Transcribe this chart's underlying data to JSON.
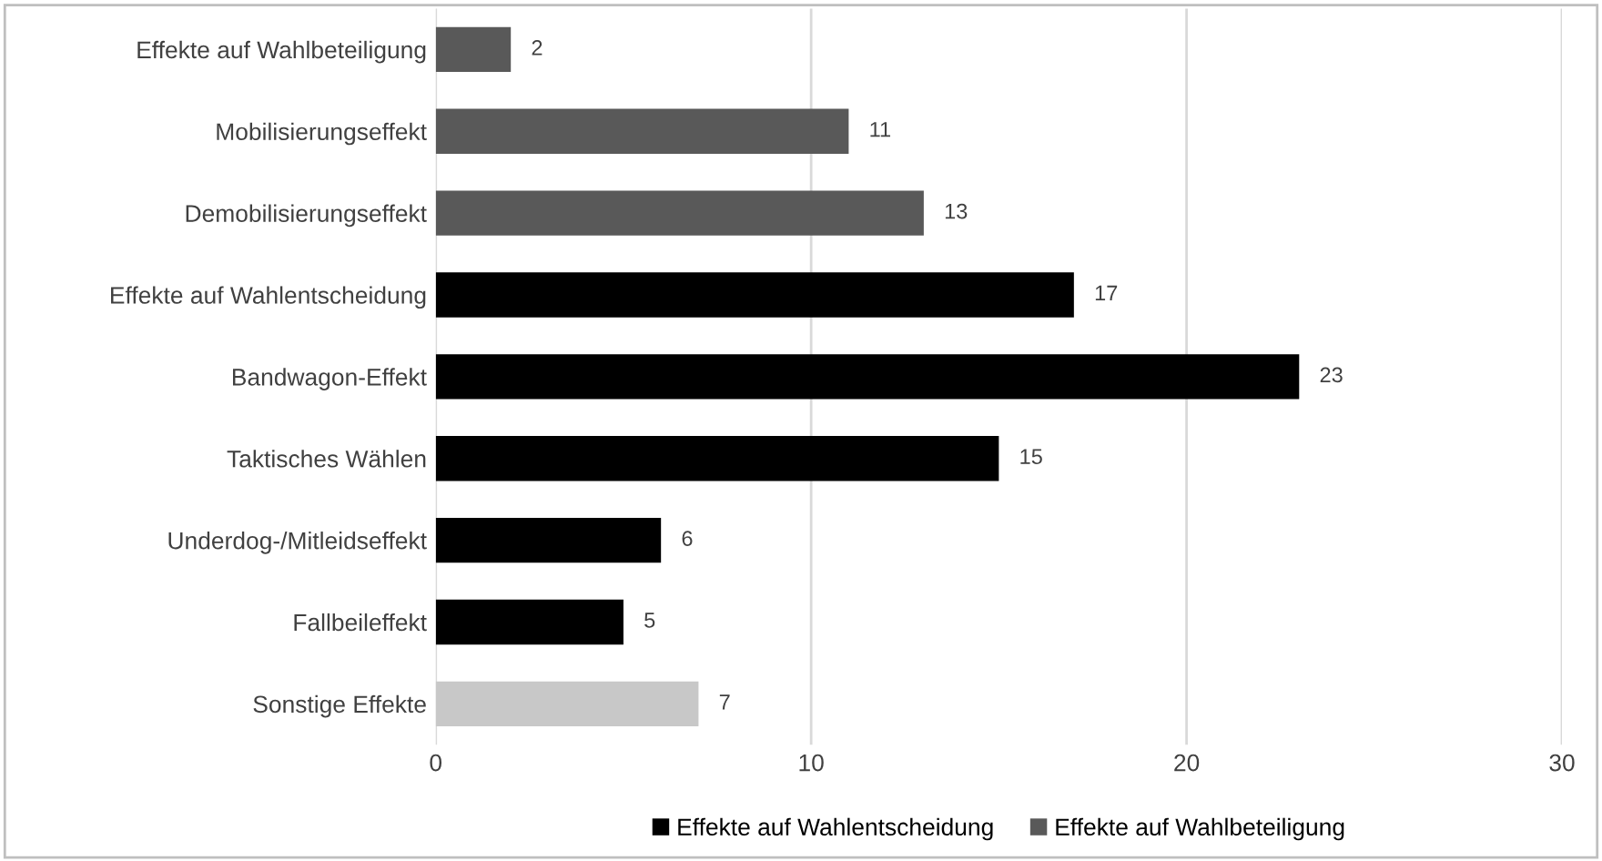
{
  "chart_data": {
    "type": "bar",
    "orientation": "horizontal",
    "categories": [
      "Effekte auf Wahlbeteiligung",
      "Mobilisierungseffekt",
      "Demobilisierungseffekt",
      "Effekte auf Wahlentscheidung",
      "Bandwagon-Effekt",
      "Taktisches Wählen",
      "Underdog-/Mitleidseffekt",
      "Fallbeileffekt",
      "Sonstige Effekte"
    ],
    "series": [
      {
        "name": "Effekte auf Wahlentscheidung",
        "color": "#000000",
        "values": [
          null,
          null,
          null,
          17,
          23,
          15,
          6,
          5,
          null
        ]
      },
      {
        "name": "Effekte auf Wahlbeteiligung",
        "color": "#595959",
        "values": [
          2,
          11,
          13,
          null,
          null,
          null,
          null,
          null,
          null
        ]
      },
      {
        "color": "#c8c8c8",
        "values": [
          null,
          null,
          null,
          null,
          null,
          null,
          null,
          null,
          7
        ]
      }
    ],
    "xlim": [
      0,
      30
    ],
    "xticks": [
      0,
      10,
      20,
      30
    ],
    "grid": "x",
    "legend": "bottom",
    "data_labels": true
  }
}
